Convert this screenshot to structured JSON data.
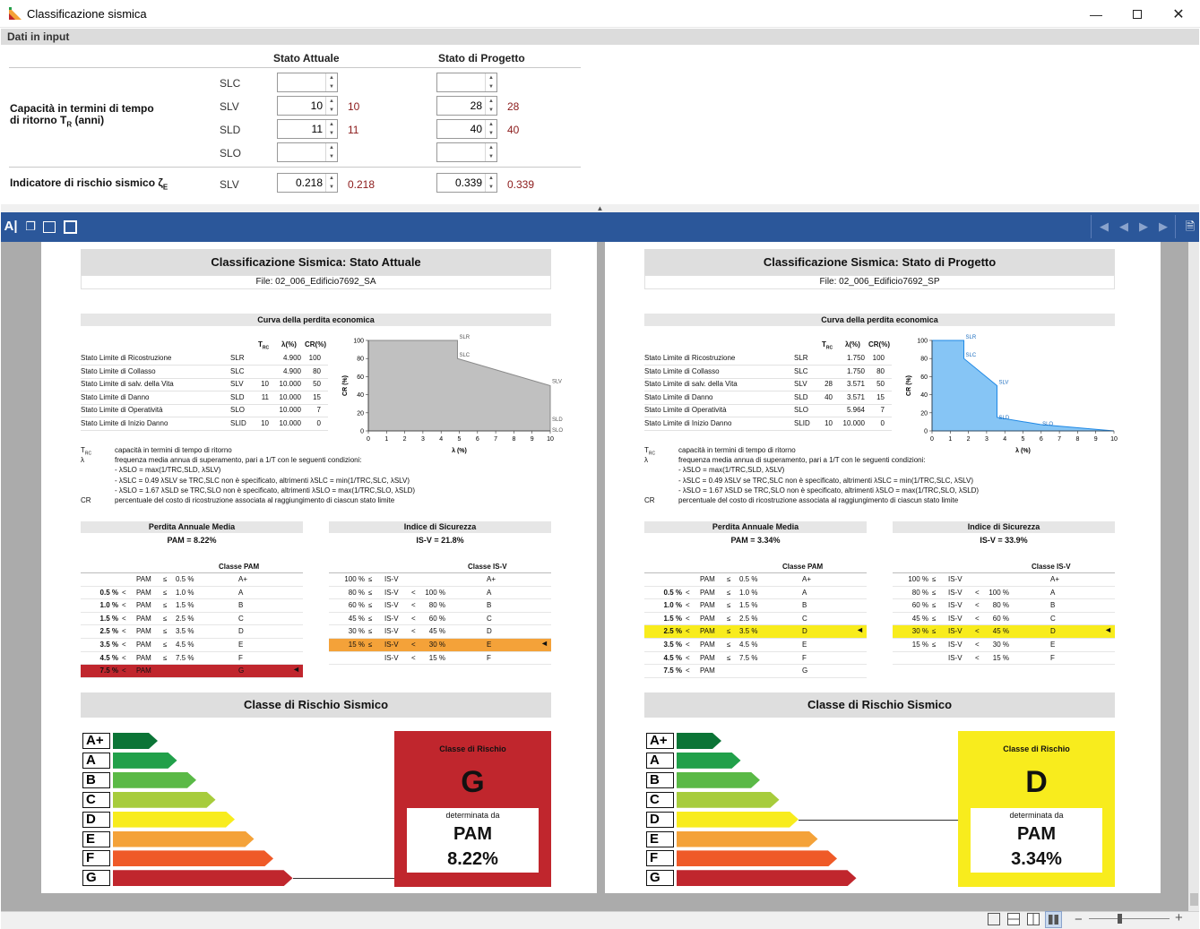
{
  "window": {
    "title": "Classificazione sismica"
  },
  "input": {
    "section_title": "Dati in input",
    "col_attuale": "Stato Attuale",
    "col_progetto": "Stato di Progetto",
    "capacity_label": "Capacità in termini di tempo di ritorno T",
    "capacity_sub": "R",
    "capacity_unit": " (anni)",
    "risk_label": "Indicatore di rischio sismico ζ",
    "risk_sub": "E",
    "rows": [
      {
        "label": "SLC",
        "attuale": "",
        "attuale_calc": "",
        "progetto": "",
        "progetto_calc": ""
      },
      {
        "label": "SLV",
        "attuale": "10",
        "attuale_calc": "10",
        "progetto": "28",
        "progetto_calc": "28"
      },
      {
        "label": "SLD",
        "attuale": "11",
        "attuale_calc": "11",
        "progetto": "40",
        "progetto_calc": "40"
      },
      {
        "label": "SLO",
        "attuale": "",
        "attuale_calc": "",
        "progetto": "",
        "progetto_calc": ""
      }
    ],
    "risk_row": {
      "label": "SLV",
      "attuale": "0.218",
      "attuale_calc": "0.218",
      "progetto": "0.339",
      "progetto_calc": "0.339"
    }
  },
  "colors": {
    "toolbar": "#2b579a",
    "red_class": "#c0262d",
    "yellow_class": "#f8ec1d",
    "highlight_orange": "#f4a239",
    "highlight_yellow": "#f8ec1d",
    "chart_grey": "#c0c0c0",
    "chart_blue": "#86c5f5"
  },
  "toolbar_icons": [
    "text-select-icon",
    "copy-icon",
    "fit-page-icon",
    "full-screen-icon"
  ],
  "nav_icons": [
    "first-page-icon",
    "prev-page-icon",
    "next-page-icon",
    "last-page-icon",
    "export-icon"
  ],
  "status": {
    "zoom_minus": "−",
    "zoom_plus": "+"
  },
  "common": {
    "curve_title": "Curva della perdita economica",
    "th_trc": "T",
    "th_trc_sub": "RC",
    "th_lambda": "λ(%)",
    "th_cr": "CR(%)",
    "limit_names": [
      "Stato Limite di Ricostruzione",
      "Stato Limite di Collasso",
      "Stato Limite di salv. della Vita",
      "Stato Limite di Danno",
      "Stato Limite di Operatività",
      "Stato Limite di Inizio Danno"
    ],
    "limit_codes": [
      "SLR",
      "SLC",
      "SLV",
      "SLD",
      "SLO",
      "SLID"
    ],
    "cr_values": [
      "100",
      "80",
      "50",
      "15",
      "7",
      "0"
    ],
    "legend": [
      [
        "T",
        "RC",
        "capacità in termini di tempo di ritorno"
      ],
      [
        "λ",
        "",
        "frequenza media annua di superamento, pari a 1/T con le seguenti condizioni:"
      ],
      [
        "",
        "",
        "- λSLO = max(1/TRC,SLD, λSLV)"
      ],
      [
        "",
        "",
        "- λSLC = 0.49 λSLV  se TRC,SLC non è specificato, altrimenti λSLC = min(1/TRC,SLC, λSLV)"
      ],
      [
        "",
        "",
        "- λSLO = 1.67 λSLD  se TRC,SLO non è specificato, altrimenti λSLO = max(1/TRC,SLO, λSLD)"
      ],
      [
        "CR",
        "",
        "percentuale del costo di ricostruzione associata al raggiungimento di ciascun stato limite"
      ]
    ],
    "pam_title": "Perdita Annuale Media",
    "isv_title": "Indice di Sicurezza",
    "pam_col": "Classe PAM",
    "isv_col": "Classe IS-V",
    "pam_rows": [
      [
        "",
        "",
        "PAM",
        "≤",
        "0.5 %",
        "A+"
      ],
      [
        "0.5 %",
        "<",
        "PAM",
        "≤",
        "1.0 %",
        "A"
      ],
      [
        "1.0 %",
        "<",
        "PAM",
        "≤",
        "1.5 %",
        "B"
      ],
      [
        "1.5 %",
        "<",
        "PAM",
        "≤",
        "2.5 %",
        "C"
      ],
      [
        "2.5 %",
        "<",
        "PAM",
        "≤",
        "3.5 %",
        "D"
      ],
      [
        "3.5 %",
        "<",
        "PAM",
        "≤",
        "4.5 %",
        "E"
      ],
      [
        "4.5 %",
        "<",
        "PAM",
        "≤",
        "7.5 %",
        "F"
      ],
      [
        "7.5 %",
        "<",
        "PAM",
        "",
        "",
        "G"
      ]
    ],
    "isv_rows": [
      [
        "100 %",
        "≤",
        "IS-V",
        "",
        "",
        "A+"
      ],
      [
        "80 %",
        "≤",
        "IS-V",
        "<",
        "100 %",
        "A"
      ],
      [
        "60 %",
        "≤",
        "IS-V",
        "<",
        "80 %",
        "B"
      ],
      [
        "45 %",
        "≤",
        "IS-V",
        "<",
        "60 %",
        "C"
      ],
      [
        "30 %",
        "≤",
        "IS-V",
        "<",
        "45 %",
        "D"
      ],
      [
        "15 %",
        "≤",
        "IS-V",
        "<",
        "30 %",
        "E"
      ],
      [
        "",
        "",
        "IS-V",
        "<",
        "15 %",
        "F"
      ]
    ],
    "risk_title": "Classe di Rischio Sismico",
    "scale_letters": [
      "A+",
      "A",
      "B",
      "C",
      "D",
      "E",
      "F",
      "G"
    ],
    "scale_colors": [
      "#0b7436",
      "#21a04a",
      "#5ab946",
      "#a7cc3c",
      "#f8ec1d",
      "#f4a239",
      "#ef5a28",
      "#c0262d"
    ],
    "box_title": "Classe di Rischio",
    "box_det": "determinata da",
    "box_param": "PAM",
    "chart_ylabel": "CR (%)",
    "chart_xlabel": "λ (%)"
  },
  "pages": [
    {
      "title": "Classificazione Sismica: Stato Attuale",
      "file": "File: 02_006_Edificio7692_SA",
      "trc": [
        "",
        "",
        "10",
        "11",
        "",
        "10"
      ],
      "lambda": [
        "4.900",
        "4.900",
        "10.000",
        "10.000",
        "10.000",
        "10.000"
      ],
      "pam_value": "PAM = 8.22%",
      "isv_value": "IS-V = 21.8%",
      "pam_highlight": 7,
      "isv_highlight": 5,
      "class_letter": "G",
      "class_value": "8.22%",
      "class_index": 7
    },
    {
      "title": "Classificazione Sismica: Stato di Progetto",
      "file": "File: 02_006_Edificio7692_SP",
      "trc": [
        "",
        "",
        "28",
        "40",
        "",
        "10"
      ],
      "lambda": [
        "1.750",
        "1.750",
        "3.571",
        "3.571",
        "5.964",
        "10.000"
      ],
      "pam_value": "PAM = 3.34%",
      "isv_value": "IS-V = 33.9%",
      "pam_highlight": 4,
      "isv_highlight": 4,
      "class_letter": "D",
      "class_value": "3.34%",
      "class_index": 4
    }
  ],
  "chart_data": [
    {
      "type": "area",
      "xlabel": "λ (%)",
      "ylabel": "CR (%)",
      "xlim": [
        0,
        10
      ],
      "ylim": [
        0,
        100
      ],
      "x": [
        0,
        4.9,
        4.9,
        10,
        10,
        10,
        10
      ],
      "y": [
        100,
        100,
        80,
        50,
        15,
        7,
        0
      ],
      "point_labels": [
        "",
        "SLR",
        "SLC",
        "SLV",
        "SLD",
        "SLO",
        ""
      ],
      "xticks": [
        0,
        1,
        2,
        3,
        4,
        5,
        6,
        7,
        8,
        9,
        10
      ],
      "yticks": [
        0,
        20,
        40,
        60,
        80,
        100
      ]
    },
    {
      "type": "area",
      "xlabel": "λ (%)",
      "ylabel": "CR (%)",
      "xlim": [
        0,
        10
      ],
      "ylim": [
        0,
        100
      ],
      "x": [
        0,
        1.75,
        1.75,
        3.571,
        3.571,
        5.964,
        10
      ],
      "y": [
        100,
        100,
        80,
        50,
        15,
        7,
        0
      ],
      "point_labels": [
        "",
        "SLR",
        "SLC",
        "SLV",
        "SLD",
        "SLO",
        ""
      ],
      "xticks": [
        0,
        1,
        2,
        3,
        4,
        5,
        6,
        7,
        8,
        9,
        10
      ],
      "yticks": [
        0,
        20,
        40,
        60,
        80,
        100
      ]
    }
  ]
}
